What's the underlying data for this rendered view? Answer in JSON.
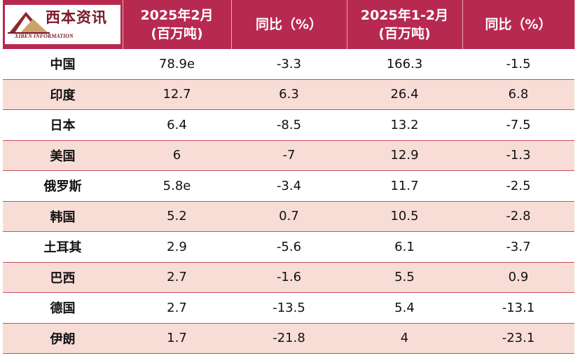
{
  "logo": {
    "title": "西本资讯",
    "subtitle": "XIBEN INFORMATION"
  },
  "table": {
    "header": [
      [
        "2025年2月",
        "(百万吨)"
      ],
      [
        "同比（%）"
      ],
      [
        "2025年1-2月",
        "(百万吨)"
      ],
      [
        "同比（%）"
      ]
    ],
    "rows": [
      [
        "中国",
        "78.9e",
        "-3.3",
        "166.3",
        "-1.5"
      ],
      [
        "印度",
        "12.7",
        "6.3",
        "26.4",
        "6.8"
      ],
      [
        "日本",
        "6.4",
        "-8.5",
        "13.2",
        "-7.5"
      ],
      [
        "美国",
        "6",
        "-7",
        "12.9",
        "-1.3"
      ],
      [
        "俄罗斯",
        "5.8e",
        "-3.4",
        "11.7",
        "-2.5"
      ],
      [
        "韩国",
        "5.2",
        "0.7",
        "10.5",
        "-2.8"
      ],
      [
        "土耳其",
        "2.9",
        "-5.6",
        "6.1",
        "-3.7"
      ],
      [
        "巴西",
        "2.7",
        "-1.6",
        "5.5",
        "0.9"
      ],
      [
        "德国",
        "2.7",
        "-13.5",
        "5.4",
        "-13.1"
      ],
      [
        "伊朗",
        "1.7",
        "-21.8",
        "4",
        "-23.1"
      ]
    ]
  }
}
